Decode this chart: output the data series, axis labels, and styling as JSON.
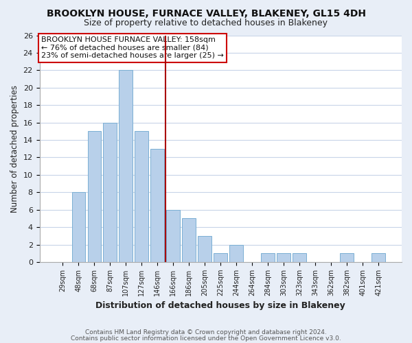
{
  "title": "BROOKLYN HOUSE, FURNACE VALLEY, BLAKENEY, GL15 4DH",
  "subtitle": "Size of property relative to detached houses in Blakeney",
  "xlabel": "Distribution of detached houses by size in Blakeney",
  "ylabel": "Number of detached properties",
  "footer1": "Contains HM Land Registry data © Crown copyright and database right 2024.",
  "footer2": "Contains public sector information licensed under the Open Government Licence v3.0.",
  "bin_labels": [
    "29sqm",
    "48sqm",
    "68sqm",
    "87sqm",
    "107sqm",
    "127sqm",
    "146sqm",
    "166sqm",
    "186sqm",
    "205sqm",
    "225sqm",
    "244sqm",
    "264sqm",
    "284sqm",
    "303sqm",
    "323sqm",
    "343sqm",
    "362sqm",
    "382sqm",
    "401sqm",
    "421sqm"
  ],
  "bar_heights": [
    0,
    8,
    15,
    16,
    22,
    15,
    13,
    6,
    5,
    3,
    1,
    2,
    0,
    1,
    1,
    1,
    0,
    0,
    1,
    0,
    1
  ],
  "bar_color": "#b8d0ea",
  "bar_edge_color": "#7bafd4",
  "vline_color": "#aa0000",
  "vline_x_index": 6.5,
  "ylim": [
    0,
    26
  ],
  "yticks": [
    0,
    2,
    4,
    6,
    8,
    10,
    12,
    14,
    16,
    18,
    20,
    22,
    24,
    26
  ],
  "annotation_title": "BROOKLYN HOUSE FURNACE VALLEY: 158sqm",
  "annotation_line1": "← 76% of detached houses are smaller (84)",
  "annotation_line2": "23% of semi-detached houses are larger (25) →",
  "background_color": "#e8eef7",
  "plot_bg_color": "#ffffff",
  "grid_color": "#c8d4e8",
  "title_fontsize": 10,
  "subtitle_fontsize": 9
}
